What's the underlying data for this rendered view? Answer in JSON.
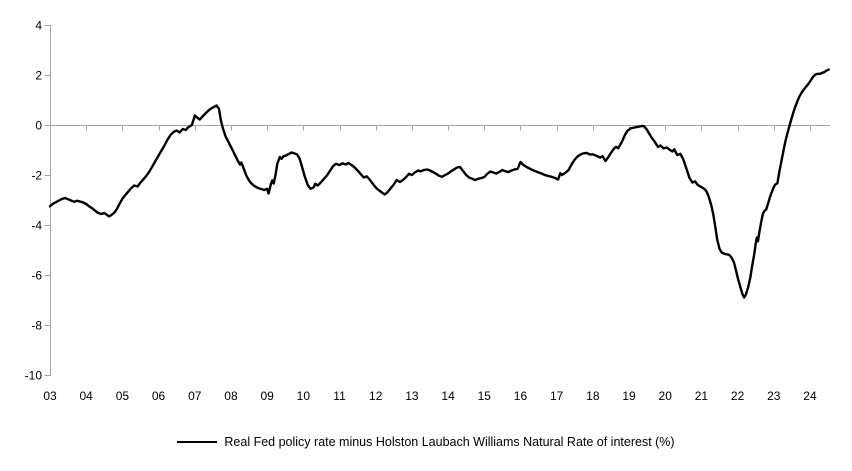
{
  "chart_data": {
    "type": "line",
    "title": "",
    "legend_position": "bottom",
    "grid": false,
    "axis_color": "#a6a6a6",
    "label_color": "#000000",
    "background_color": "#ffffff",
    "ylim": [
      -10,
      4
    ],
    "xlim": [
      3,
      24.55
    ],
    "y_ticks": [
      4,
      2,
      0,
      -2,
      -4,
      -6,
      -8,
      -10
    ],
    "x_tick_years": [
      3,
      4,
      5,
      6,
      7,
      8,
      9,
      10,
      11,
      12,
      13,
      14,
      15,
      16,
      17,
      18,
      19,
      20,
      21,
      22,
      23,
      24
    ],
    "x_tick_labels": [
      "03",
      "04",
      "05",
      "06",
      "07",
      "08",
      "09",
      "10",
      "11",
      "12",
      "13",
      "14",
      "15",
      "16",
      "17",
      "18",
      "19",
      "20",
      "21",
      "22",
      "23",
      "24"
    ],
    "zero_baseline": true,
    "series": [
      {
        "name": "Real Fed policy rate minus Holston Laubach Williams Natural Rate of interest (%)",
        "color": "#000000",
        "points": [
          [
            3.0,
            -3.25
          ],
          [
            3.08,
            -3.15
          ],
          [
            3.17,
            -3.08
          ],
          [
            3.25,
            -3.02
          ],
          [
            3.33,
            -2.96
          ],
          [
            3.42,
            -2.92
          ],
          [
            3.5,
            -2.97
          ],
          [
            3.58,
            -3.02
          ],
          [
            3.67,
            -3.07
          ],
          [
            3.75,
            -3.03
          ],
          [
            3.83,
            -3.06
          ],
          [
            3.92,
            -3.1
          ],
          [
            4.0,
            -3.16
          ],
          [
            4.08,
            -3.25
          ],
          [
            4.17,
            -3.33
          ],
          [
            4.25,
            -3.43
          ],
          [
            4.33,
            -3.52
          ],
          [
            4.42,
            -3.56
          ],
          [
            4.5,
            -3.52
          ],
          [
            4.58,
            -3.6
          ],
          [
            4.63,
            -3.66
          ],
          [
            4.7,
            -3.6
          ],
          [
            4.78,
            -3.5
          ],
          [
            4.85,
            -3.35
          ],
          [
            4.92,
            -3.15
          ],
          [
            5.0,
            -2.95
          ],
          [
            5.08,
            -2.8
          ],
          [
            5.17,
            -2.65
          ],
          [
            5.25,
            -2.52
          ],
          [
            5.33,
            -2.42
          ],
          [
            5.42,
            -2.46
          ],
          [
            5.5,
            -2.3
          ],
          [
            5.58,
            -2.17
          ],
          [
            5.67,
            -2.02
          ],
          [
            5.75,
            -1.85
          ],
          [
            5.83,
            -1.65
          ],
          [
            5.92,
            -1.42
          ],
          [
            6.0,
            -1.22
          ],
          [
            6.08,
            -1.02
          ],
          [
            6.17,
            -0.8
          ],
          [
            6.25,
            -0.58
          ],
          [
            6.33,
            -0.4
          ],
          [
            6.42,
            -0.27
          ],
          [
            6.5,
            -0.22
          ],
          [
            6.58,
            -0.3
          ],
          [
            6.67,
            -0.16
          ],
          [
            6.75,
            -0.2
          ],
          [
            6.83,
            -0.08
          ],
          [
            6.92,
            0.0
          ],
          [
            7.0,
            0.38
          ],
          [
            7.08,
            0.28
          ],
          [
            7.14,
            0.22
          ],
          [
            7.22,
            0.35
          ],
          [
            7.3,
            0.47
          ],
          [
            7.38,
            0.58
          ],
          [
            7.46,
            0.67
          ],
          [
            7.54,
            0.73
          ],
          [
            7.6,
            0.78
          ],
          [
            7.67,
            0.65
          ],
          [
            7.72,
            0.2
          ],
          [
            7.78,
            -0.15
          ],
          [
            7.85,
            -0.45
          ],
          [
            7.92,
            -0.65
          ],
          [
            8.0,
            -0.87
          ],
          [
            8.08,
            -1.1
          ],
          [
            8.17,
            -1.38
          ],
          [
            8.25,
            -1.58
          ],
          [
            8.29,
            -1.5
          ],
          [
            8.35,
            -1.73
          ],
          [
            8.42,
            -2.0
          ],
          [
            8.5,
            -2.22
          ],
          [
            8.58,
            -2.36
          ],
          [
            8.67,
            -2.46
          ],
          [
            8.75,
            -2.52
          ],
          [
            8.83,
            -2.56
          ],
          [
            8.92,
            -2.6
          ],
          [
            9.0,
            -2.55
          ],
          [
            9.04,
            -2.74
          ],
          [
            9.1,
            -2.38
          ],
          [
            9.14,
            -2.22
          ],
          [
            9.18,
            -2.34
          ],
          [
            9.23,
            -2.0
          ],
          [
            9.28,
            -1.55
          ],
          [
            9.35,
            -1.28
          ],
          [
            9.4,
            -1.35
          ],
          [
            9.45,
            -1.25
          ],
          [
            9.52,
            -1.22
          ],
          [
            9.6,
            -1.16
          ],
          [
            9.67,
            -1.1
          ],
          [
            9.75,
            -1.13
          ],
          [
            9.83,
            -1.18
          ],
          [
            9.9,
            -1.35
          ],
          [
            9.97,
            -1.7
          ],
          [
            10.05,
            -2.1
          ],
          [
            10.12,
            -2.4
          ],
          [
            10.2,
            -2.55
          ],
          [
            10.28,
            -2.5
          ],
          [
            10.33,
            -2.35
          ],
          [
            10.4,
            -2.42
          ],
          [
            10.48,
            -2.3
          ],
          [
            10.57,
            -2.15
          ],
          [
            10.65,
            -2.02
          ],
          [
            10.73,
            -1.85
          ],
          [
            10.82,
            -1.65
          ],
          [
            10.9,
            -1.55
          ],
          [
            11.0,
            -1.6
          ],
          [
            11.08,
            -1.53
          ],
          [
            11.17,
            -1.58
          ],
          [
            11.25,
            -1.52
          ],
          [
            11.33,
            -1.6
          ],
          [
            11.42,
            -1.7
          ],
          [
            11.5,
            -1.82
          ],
          [
            11.58,
            -1.95
          ],
          [
            11.67,
            -2.1
          ],
          [
            11.75,
            -2.05
          ],
          [
            11.83,
            -2.18
          ],
          [
            11.92,
            -2.35
          ],
          [
            12.0,
            -2.5
          ],
          [
            12.08,
            -2.6
          ],
          [
            12.17,
            -2.7
          ],
          [
            12.25,
            -2.78
          ],
          [
            12.33,
            -2.68
          ],
          [
            12.42,
            -2.52
          ],
          [
            12.5,
            -2.38
          ],
          [
            12.58,
            -2.2
          ],
          [
            12.67,
            -2.28
          ],
          [
            12.75,
            -2.2
          ],
          [
            12.83,
            -2.1
          ],
          [
            12.92,
            -1.95
          ],
          [
            13.0,
            -2.0
          ],
          [
            13.08,
            -1.9
          ],
          [
            13.17,
            -1.82
          ],
          [
            13.25,
            -1.85
          ],
          [
            13.33,
            -1.8
          ],
          [
            13.42,
            -1.78
          ],
          [
            13.5,
            -1.82
          ],
          [
            13.58,
            -1.88
          ],
          [
            13.67,
            -1.95
          ],
          [
            13.75,
            -2.03
          ],
          [
            13.83,
            -2.07
          ],
          [
            13.92,
            -2.0
          ],
          [
            14.0,
            -1.94
          ],
          [
            14.08,
            -1.85
          ],
          [
            14.17,
            -1.77
          ],
          [
            14.25,
            -1.7
          ],
          [
            14.33,
            -1.68
          ],
          [
            14.42,
            -1.85
          ],
          [
            14.5,
            -2.0
          ],
          [
            14.58,
            -2.1
          ],
          [
            14.67,
            -2.15
          ],
          [
            14.75,
            -2.2
          ],
          [
            14.83,
            -2.15
          ],
          [
            14.92,
            -2.12
          ],
          [
            15.0,
            -2.08
          ],
          [
            15.08,
            -1.95
          ],
          [
            15.17,
            -1.86
          ],
          [
            15.25,
            -1.9
          ],
          [
            15.33,
            -1.94
          ],
          [
            15.42,
            -1.87
          ],
          [
            15.5,
            -1.8
          ],
          [
            15.58,
            -1.85
          ],
          [
            15.67,
            -1.88
          ],
          [
            15.75,
            -1.82
          ],
          [
            15.83,
            -1.78
          ],
          [
            15.92,
            -1.75
          ],
          [
            16.0,
            -1.48
          ],
          [
            16.08,
            -1.6
          ],
          [
            16.17,
            -1.68
          ],
          [
            16.25,
            -1.74
          ],
          [
            16.33,
            -1.8
          ],
          [
            16.42,
            -1.85
          ],
          [
            16.5,
            -1.9
          ],
          [
            16.58,
            -1.94
          ],
          [
            16.67,
            -2.0
          ],
          [
            16.75,
            -2.03
          ],
          [
            16.83,
            -2.06
          ],
          [
            16.92,
            -2.1
          ],
          [
            17.0,
            -2.15
          ],
          [
            17.04,
            -2.18
          ],
          [
            17.1,
            -1.93
          ],
          [
            17.15,
            -2.0
          ],
          [
            17.25,
            -1.9
          ],
          [
            17.33,
            -1.8
          ],
          [
            17.42,
            -1.55
          ],
          [
            17.5,
            -1.38
          ],
          [
            17.58,
            -1.25
          ],
          [
            17.67,
            -1.17
          ],
          [
            17.75,
            -1.13
          ],
          [
            17.83,
            -1.12
          ],
          [
            17.92,
            -1.18
          ],
          [
            18.0,
            -1.17
          ],
          [
            18.1,
            -1.23
          ],
          [
            18.2,
            -1.3
          ],
          [
            18.27,
            -1.25
          ],
          [
            18.35,
            -1.44
          ],
          [
            18.42,
            -1.3
          ],
          [
            18.5,
            -1.12
          ],
          [
            18.58,
            -0.95
          ],
          [
            18.64,
            -0.87
          ],
          [
            18.7,
            -0.93
          ],
          [
            18.8,
            -0.68
          ],
          [
            18.88,
            -0.42
          ],
          [
            18.95,
            -0.24
          ],
          [
            19.05,
            -0.13
          ],
          [
            19.15,
            -0.1
          ],
          [
            19.25,
            -0.07
          ],
          [
            19.35,
            -0.04
          ],
          [
            19.42,
            -0.05
          ],
          [
            19.5,
            -0.2
          ],
          [
            19.6,
            -0.45
          ],
          [
            19.7,
            -0.65
          ],
          [
            19.8,
            -0.88
          ],
          [
            19.87,
            -0.82
          ],
          [
            19.95,
            -0.93
          ],
          [
            20.05,
            -0.9
          ],
          [
            20.13,
            -1.0
          ],
          [
            20.2,
            -1.06
          ],
          [
            20.25,
            -0.97
          ],
          [
            20.33,
            -1.2
          ],
          [
            20.42,
            -1.15
          ],
          [
            20.5,
            -1.38
          ],
          [
            20.58,
            -1.72
          ],
          [
            20.67,
            -2.12
          ],
          [
            20.75,
            -2.3
          ],
          [
            20.82,
            -2.25
          ],
          [
            20.9,
            -2.4
          ],
          [
            20.96,
            -2.45
          ],
          [
            21.04,
            -2.52
          ],
          [
            21.1,
            -2.58
          ],
          [
            21.15,
            -2.68
          ],
          [
            21.21,
            -2.9
          ],
          [
            21.27,
            -3.2
          ],
          [
            21.33,
            -3.6
          ],
          [
            21.38,
            -4.05
          ],
          [
            21.44,
            -4.6
          ],
          [
            21.5,
            -4.95
          ],
          [
            21.56,
            -5.1
          ],
          [
            21.63,
            -5.15
          ],
          [
            21.7,
            -5.17
          ],
          [
            21.77,
            -5.2
          ],
          [
            21.83,
            -5.3
          ],
          [
            21.9,
            -5.5
          ],
          [
            21.96,
            -5.85
          ],
          [
            22.02,
            -6.2
          ],
          [
            22.08,
            -6.5
          ],
          [
            22.13,
            -6.75
          ],
          [
            22.18,
            -6.9
          ],
          [
            22.23,
            -6.78
          ],
          [
            22.29,
            -6.5
          ],
          [
            22.35,
            -6.1
          ],
          [
            22.4,
            -5.65
          ],
          [
            22.46,
            -5.15
          ],
          [
            22.5,
            -4.75
          ],
          [
            22.53,
            -4.5
          ],
          [
            22.56,
            -4.65
          ],
          [
            22.6,
            -4.3
          ],
          [
            22.65,
            -3.9
          ],
          [
            22.7,
            -3.55
          ],
          [
            22.75,
            -3.42
          ],
          [
            22.79,
            -3.38
          ],
          [
            22.85,
            -3.1
          ],
          [
            22.9,
            -2.85
          ],
          [
            22.96,
            -2.62
          ],
          [
            23.0,
            -2.48
          ],
          [
            23.04,
            -2.38
          ],
          [
            23.1,
            -2.33
          ],
          [
            23.15,
            -1.9
          ],
          [
            23.21,
            -1.45
          ],
          [
            23.27,
            -1.0
          ],
          [
            23.33,
            -0.6
          ],
          [
            23.4,
            -0.2
          ],
          [
            23.46,
            0.1
          ],
          [
            23.52,
            0.4
          ],
          [
            23.58,
            0.68
          ],
          [
            23.65,
            0.95
          ],
          [
            23.71,
            1.15
          ],
          [
            23.77,
            1.3
          ],
          [
            23.83,
            1.42
          ],
          [
            23.9,
            1.55
          ],
          [
            23.96,
            1.65
          ],
          [
            24.02,
            1.78
          ],
          [
            24.08,
            1.92
          ],
          [
            24.15,
            2.02
          ],
          [
            24.21,
            2.05
          ],
          [
            24.27,
            2.04
          ],
          [
            24.33,
            2.08
          ],
          [
            24.4,
            2.12
          ],
          [
            24.46,
            2.18
          ],
          [
            24.52,
            2.22
          ]
        ]
      }
    ]
  },
  "legend": {
    "label": "Real Fed policy rate minus Holston Laubach Williams Natural Rate of interest (%)"
  }
}
